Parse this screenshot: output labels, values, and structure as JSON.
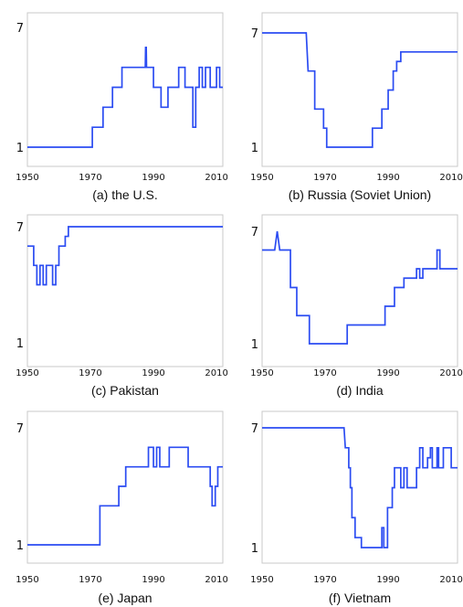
{
  "chart_data": [
    {
      "type": "line",
      "caption": "(a) the U.S.",
      "xlim": [
        1950,
        2012
      ],
      "ylim": [
        1,
        7
      ],
      "xticks": [
        "1950",
        "1970",
        "1990",
        "2010"
      ],
      "yticks": [
        "1",
        "7"
      ],
      "color": "#2b4cf2",
      "series": [
        {
          "x": [
            1950,
            1970.6,
            1970.6,
            1974,
            1974,
            1977,
            1977,
            1980,
            1980,
            1987.4,
            1987.5,
            1987.7,
            1987.8,
            1990,
            1990,
            1992.4,
            1992.4,
            1994.6,
            1994.6,
            1998,
            1998,
            2000,
            2000,
            2002.5,
            2002.5,
            2003.4,
            2003.4,
            2004.5,
            2004.5,
            2005.5,
            2005.5,
            2006.5,
            2006.5,
            2008,
            2008,
            2010,
            2010,
            2011,
            2011,
            2012
          ],
          "y": [
            1,
            1,
            2,
            2,
            3,
            3,
            4,
            4,
            5,
            5,
            6,
            6,
            5,
            5,
            4,
            4,
            3,
            3,
            4,
            4,
            5,
            5,
            4,
            4,
            2,
            2,
            4,
            4,
            5,
            5,
            4,
            4,
            5,
            5,
            4,
            4,
            5,
            5,
            4,
            4
          ]
        }
      ]
    },
    {
      "type": "line",
      "caption": "(b) Russia (Soviet Union)",
      "xlim": [
        1950,
        2012
      ],
      "ylim": [
        1,
        7
      ],
      "xticks": [
        "1950",
        "1970",
        "1990",
        "2010"
      ],
      "yticks": [
        "1",
        "7"
      ],
      "color": "#2b4cf2",
      "series": [
        {
          "x": [
            1950,
            1964,
            1964.6,
            1966.7,
            1966.7,
            1969.5,
            1969.5,
            1970.5,
            1970.5,
            1985,
            1985,
            1988,
            1988,
            1990,
            1990,
            1991.6,
            1991.6,
            1992.7,
            1992.7,
            1994,
            1994,
            1995,
            1995,
            2012
          ],
          "y": [
            7,
            7,
            5,
            5,
            3,
            3,
            2,
            2,
            1,
            1,
            2,
            2,
            3,
            3,
            4,
            4,
            5,
            5,
            5.5,
            5.5,
            6,
            6,
            6,
            6
          ]
        }
      ]
    },
    {
      "type": "line",
      "caption": "(c) Pakistan",
      "xlim": [
        1950,
        2012
      ],
      "ylim": [
        1,
        7
      ],
      "xticks": [
        "1950",
        "1970",
        "1990",
        "2010"
      ],
      "yticks": [
        "1",
        "7"
      ],
      "color": "#2b4cf2",
      "series": [
        {
          "x": [
            1950,
            1952,
            1952,
            1953,
            1953,
            1954,
            1954,
            1955,
            1955,
            1956,
            1956,
            1958,
            1958,
            1959,
            1959,
            1960,
            1960,
            1962,
            1962,
            1963,
            1963,
            1963.8,
            1963.8,
            2012
          ],
          "y": [
            6,
            6,
            5,
            5,
            4,
            4,
            5,
            5,
            4,
            4,
            5,
            5,
            4,
            4,
            5,
            5,
            6,
            6,
            6.5,
            6.5,
            7,
            7,
            7,
            7
          ]
        }
      ]
    },
    {
      "type": "line",
      "caption": "(d) India",
      "xlim": [
        1950,
        2012
      ],
      "ylim": [
        1,
        7
      ],
      "xticks": [
        "1950",
        "1970",
        "1990",
        "2010"
      ],
      "yticks": [
        "1",
        "7"
      ],
      "color": "#2b4cf2",
      "series": [
        {
          "x": [
            1950,
            1954,
            1954.8,
            1955.6,
            1955.6,
            1959,
            1959,
            1961,
            1961,
            1965,
            1965,
            1977,
            1977,
            1989,
            1989,
            1992,
            1992,
            1995,
            1995,
            1999,
            1999,
            2000,
            2000,
            2001,
            2001,
            2002.5,
            2002.5,
            2005.5,
            2005.5,
            2006.4,
            2006.4,
            2007.4,
            2007.4,
            2012
          ],
          "y": [
            6,
            6,
            7,
            6,
            6,
            6,
            4,
            4,
            2.5,
            2.5,
            1,
            1,
            2,
            2,
            3,
            3,
            4,
            4,
            4.5,
            4.5,
            5,
            5,
            4.5,
            4.5,
            5,
            5,
            5,
            5,
            6,
            6,
            5,
            5,
            5,
            5
          ]
        }
      ]
    },
    {
      "type": "line",
      "caption": "(e) Japan",
      "xlim": [
        1950,
        2012
      ],
      "ylim": [
        1,
        7
      ],
      "xticks": [
        "1950",
        "1970",
        "1990",
        "2010"
      ],
      "yticks": [
        "1",
        "7"
      ],
      "color": "#2b4cf2",
      "series": [
        {
          "x": [
            1950,
            1973,
            1973,
            1979,
            1979,
            1981.2,
            1981.2,
            1988.4,
            1988.4,
            1990,
            1990,
            1991,
            1991,
            1992,
            1992,
            1995,
            1995,
            2001,
            2001,
            2008,
            2008,
            2008.6,
            2008.6,
            2009.6,
            2009.6,
            2010.4,
            2010.4,
            2012,
            2012,
            2013
          ],
          "y": [
            1,
            1,
            3,
            3,
            4,
            4,
            5,
            5,
            6,
            6,
            5,
            5,
            6,
            6,
            5,
            5,
            6,
            6,
            5,
            5,
            4,
            4,
            3,
            3,
            4,
            4,
            5,
            5,
            5,
            5
          ]
        }
      ]
    },
    {
      "type": "line",
      "caption": "(f) Vietnam",
      "xlim": [
        1950,
        2012
      ],
      "ylim": [
        1,
        7
      ],
      "xticks": [
        "1950",
        "1970",
        "1990",
        "2010"
      ],
      "yticks": [
        "1",
        "7"
      ],
      "color": "#2b4cf2",
      "series": [
        {
          "x": [
            1950,
            1976,
            1976.4,
            1977.5,
            1977.5,
            1978,
            1978,
            1978.5,
            1978.5,
            1979.5,
            1979.5,
            1981.5,
            1981.5,
            1988,
            1988,
            1988.6,
            1988.6,
            1989.8,
            1989.8,
            1991.3,
            1991.3,
            1992,
            1992,
            1994,
            1994,
            1995,
            1995,
            1996,
            1996,
            1999,
            1999,
            2000,
            2000,
            2001,
            2001,
            2002.5,
            2002.5,
            2003.4,
            2003.4,
            2004,
            2004,
            2005.5,
            2005.5,
            2006,
            2006,
            2007.5,
            2007.5,
            2010,
            2010,
            2012
          ],
          "y": [
            7,
            7,
            6,
            6,
            5,
            5,
            4,
            4,
            2.5,
            2.5,
            1.5,
            1.5,
            1,
            1,
            2,
            2,
            1,
            1,
            3,
            3,
            4,
            4,
            5,
            5,
            4,
            4,
            5,
            5,
            4,
            4,
            5,
            5,
            6,
            6,
            5,
            5,
            5.5,
            5.5,
            6,
            6,
            5,
            5,
            6,
            6,
            5,
            5,
            6,
            6,
            5,
            5
          ]
        }
      ]
    }
  ]
}
